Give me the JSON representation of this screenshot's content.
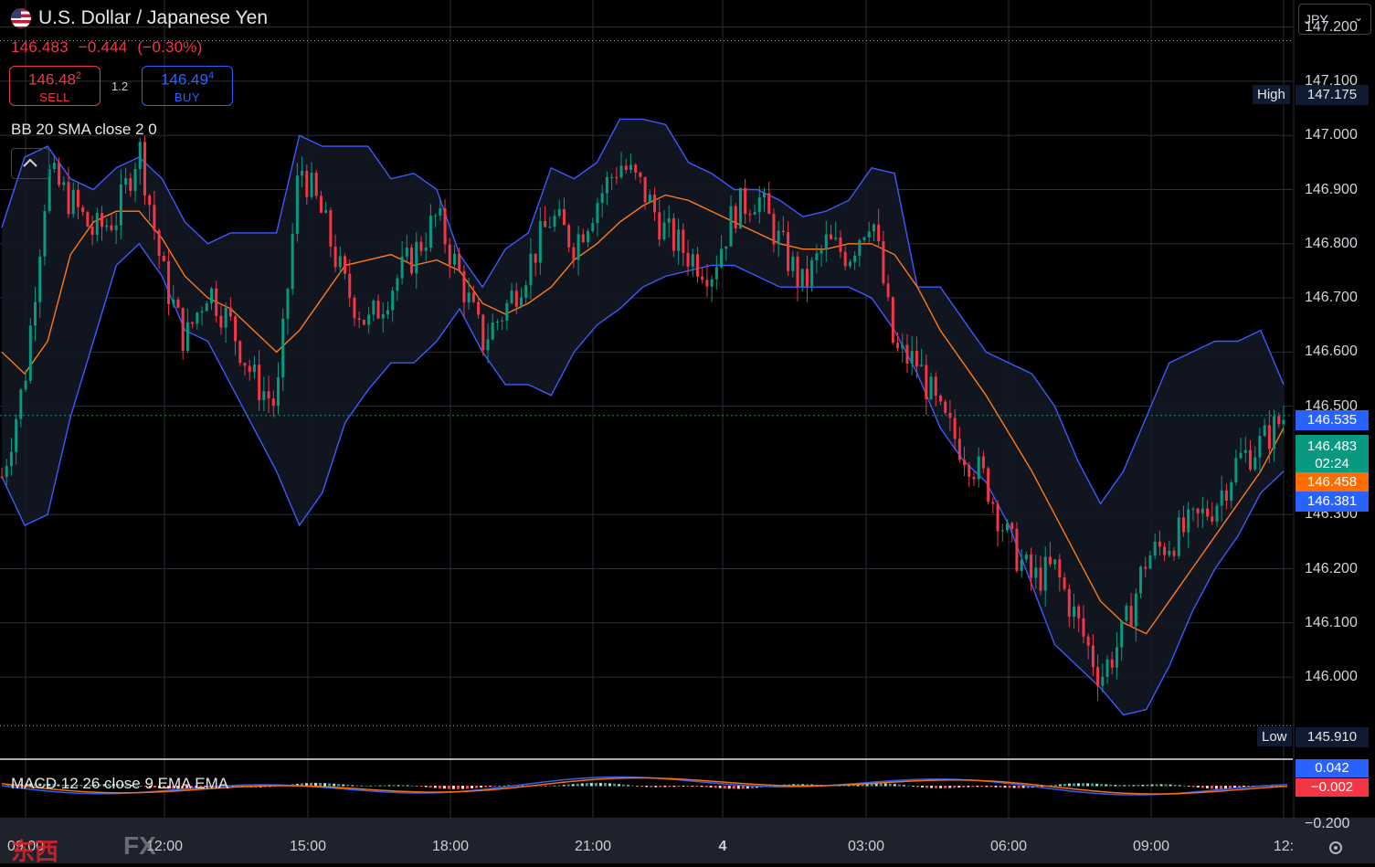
{
  "header": {
    "instrument": "U.S. Dollar / Japanese Yen",
    "last": "146.483",
    "change": "−0.444",
    "change_pct": "(−0.30%)"
  },
  "trade": {
    "sell_main": "146.48",
    "sell_sup": "2",
    "sell_label": "SELL",
    "buy_main": "146.49",
    "buy_sup": "4",
    "buy_label": "BUY",
    "spread": "1.2"
  },
  "indicators": {
    "bb": "BB 20 SMA close 2 0",
    "macd": "MACD 12 26 close 9 EMA EMA"
  },
  "currency": "JPY",
  "markers": {
    "high_label": "High",
    "high_value": "147.175",
    "low_label": "Low",
    "low_value": "145.910"
  },
  "price_tags": {
    "bb_upper": "146.535",
    "last": "146.483",
    "countdown": "02:24",
    "bb_basis": "146.458",
    "bb_lower": "146.381"
  },
  "macd_tags": {
    "macd": "0.042",
    "hist": "−0.002",
    "axis_bottom": "−0.200"
  },
  "y_ticks": [
    "147.200",
    "147.100",
    "147.000",
    "146.900",
    "146.800",
    "146.700",
    "146.600",
    "146.500",
    "146.300",
    "146.200",
    "146.100",
    "146.000"
  ],
  "x_ticks": [
    "09:00",
    "12:00",
    "15:00",
    "18:00",
    "21:00",
    "4",
    "03:00",
    "06:00",
    "09:00",
    "12:"
  ],
  "watermark": {
    "cn": "东西",
    "fx": "FX"
  },
  "colors": {
    "up": "#089981",
    "down": "#f23645",
    "bb_band": "#3d5afe",
    "basis": "#ff7a1a",
    "grid": "#2a2e39"
  },
  "chart_data": {
    "type": "candlestick",
    "title": "U.S. Dollar / Japanese Yen",
    "ylim": [
      145.85,
      147.25
    ],
    "y_tick_values": [
      147.2,
      147.1,
      147.0,
      146.9,
      146.8,
      146.7,
      146.6,
      146.5,
      146.3,
      146.2,
      146.1,
      146.0
    ],
    "x_tick_labels": [
      "09:00",
      "12:00",
      "15:00",
      "18:00",
      "21:00",
      "4",
      "03:00",
      "06:00",
      "09:00",
      "12:"
    ],
    "high": 147.175,
    "low": 145.91,
    "last": 146.483,
    "close_path": [
      146.37,
      146.55,
      146.93,
      146.88,
      146.82,
      146.85,
      146.98,
      146.75,
      146.62,
      146.72,
      146.65,
      146.55,
      146.5,
      146.95,
      146.85,
      146.72,
      146.65,
      146.72,
      146.78,
      146.85,
      146.74,
      146.62,
      146.68,
      146.76,
      146.85,
      146.8,
      146.88,
      146.95,
      146.9,
      146.82,
      146.78,
      146.75,
      146.86,
      146.89,
      146.8,
      146.72,
      146.8,
      146.78,
      146.86,
      146.6,
      146.58,
      146.48,
      146.42,
      146.36,
      146.25,
      146.18,
      146.2,
      146.1,
      146.0,
      146.08,
      146.22,
      146.25,
      146.28,
      146.32,
      146.4,
      146.43,
      146.48
    ],
    "series": [
      {
        "name": "BB upper",
        "values": [
          146.83,
          146.96,
          146.98,
          146.92,
          146.9,
          146.94,
          146.96,
          146.92,
          146.84,
          146.8,
          146.82,
          146.82,
          146.82,
          147.0,
          146.98,
          146.98,
          146.98,
          146.92,
          146.93,
          146.9,
          146.78,
          146.72,
          146.79,
          146.82,
          146.94,
          146.92,
          146.95,
          147.03,
          147.03,
          147.02,
          146.95,
          146.93,
          146.9,
          146.9,
          146.88,
          146.85,
          146.86,
          146.88,
          146.94,
          146.93,
          146.72,
          146.72,
          146.66,
          146.6,
          146.58,
          146.56,
          146.5,
          146.4,
          146.32,
          146.38,
          146.48,
          146.58,
          146.6,
          146.62,
          146.62,
          146.64,
          146.54
        ]
      },
      {
        "name": "BB basis",
        "values": [
          146.6,
          146.56,
          146.62,
          146.78,
          146.84,
          146.86,
          146.86,
          146.81,
          146.74,
          146.7,
          146.68,
          146.64,
          146.6,
          146.64,
          146.7,
          146.76,
          146.77,
          146.78,
          146.76,
          146.77,
          146.75,
          146.69,
          146.67,
          146.69,
          146.72,
          146.77,
          146.8,
          146.84,
          146.87,
          146.89,
          146.88,
          146.86,
          146.84,
          146.82,
          146.8,
          146.79,
          146.79,
          146.8,
          146.8,
          146.78,
          146.72,
          146.64,
          146.58,
          146.52,
          146.45,
          146.38,
          146.3,
          146.22,
          146.14,
          146.1,
          146.08,
          146.14,
          146.2,
          146.26,
          146.32,
          146.38,
          146.46
        ]
      },
      {
        "name": "BB lower",
        "values": [
          146.37,
          146.28,
          146.3,
          146.48,
          146.62,
          146.76,
          146.8,
          146.74,
          146.64,
          146.62,
          146.54,
          146.46,
          146.38,
          146.28,
          146.34,
          146.47,
          146.53,
          146.58,
          146.58,
          146.62,
          146.68,
          146.6,
          146.54,
          146.54,
          146.52,
          146.6,
          146.65,
          146.68,
          146.72,
          146.74,
          146.75,
          146.76,
          146.76,
          146.74,
          146.72,
          146.72,
          146.72,
          146.72,
          146.7,
          146.64,
          146.56,
          146.46,
          146.4,
          146.36,
          146.28,
          146.17,
          146.06,
          146.02,
          145.98,
          145.93,
          145.94,
          146.02,
          146.12,
          146.2,
          146.26,
          146.34,
          146.38
        ]
      }
    ]
  }
}
